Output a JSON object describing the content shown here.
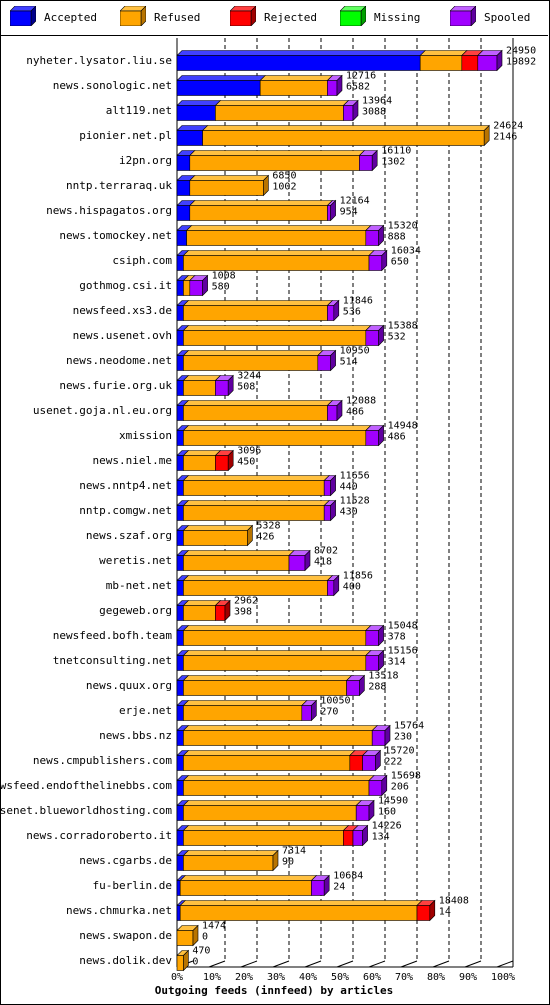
{
  "legend": [
    {
      "name": "Accepted",
      "color": "#0000ff",
      "side": "#00008b",
      "top": "#4040ff"
    },
    {
      "name": "Refused",
      "color": "#ffa500",
      "side": "#b87400",
      "top": "#ffc040"
    },
    {
      "name": "Rejected",
      "color": "#ff0000",
      "side": "#a00000",
      "top": "#ff4040"
    },
    {
      "name": "Missing",
      "color": "#00ff00",
      "side": "#00a000",
      "top": "#60ff60"
    },
    {
      "name": "Spooled",
      "color": "#a000ff",
      "side": "#6000a0",
      "top": "#c060ff"
    }
  ],
  "chart_data": {
    "type": "bar",
    "orientation": "horizontal",
    "stacked": true,
    "xlabel": "Outgoing feeds (innfeed) by articles",
    "xlim": [
      0,
      100
    ],
    "x_ticks": [
      "0%",
      "10%",
      "20%",
      "30%",
      "40%",
      "50%",
      "60%",
      "70%",
      "80%",
      "90%",
      "100%"
    ],
    "grid": true,
    "legend_position": "top",
    "series_order": [
      "Accepted",
      "Refused",
      "Rejected",
      "Missing",
      "Spooled"
    ],
    "rows": [
      {
        "name": "nyheter.lysator.liu.se",
        "total": "24950",
        "accepted": "19892",
        "pct": [
          76,
          13,
          5,
          0,
          6
        ]
      },
      {
        "name": "news.sonologic.net",
        "total": "12716",
        "accepted": "6582",
        "pct": [
          26,
          21,
          0,
          0,
          3
        ]
      },
      {
        "name": "alt119.net",
        "total": "13964",
        "accepted": "3088",
        "pct": [
          12,
          40,
          0,
          0,
          3
        ]
      },
      {
        "name": "pionier.net.pl",
        "total": "24624",
        "accepted": "2146",
        "pct": [
          8,
          88,
          0,
          0,
          0
        ]
      },
      {
        "name": "i2pn.org",
        "total": "16110",
        "accepted": "1302",
        "pct": [
          4,
          53,
          0,
          0,
          4
        ]
      },
      {
        "name": "nntp.terraraq.uk",
        "total": "6850",
        "accepted": "1002",
        "pct": [
          4,
          23,
          0,
          0,
          0
        ]
      },
      {
        "name": "news.hispagatos.org",
        "total": "12164",
        "accepted": "954",
        "pct": [
          4,
          43,
          0,
          0,
          1
        ]
      },
      {
        "name": "news.tomockey.net",
        "total": "15320",
        "accepted": "888",
        "pct": [
          3,
          56,
          0,
          0,
          4
        ]
      },
      {
        "name": "csiph.com",
        "total": "16034",
        "accepted": "650",
        "pct": [
          2,
          58,
          0,
          0,
          4
        ]
      },
      {
        "name": "gothmog.csi.it",
        "total": "1008",
        "accepted": "580",
        "pct": [
          2,
          2,
          0,
          0,
          4
        ]
      },
      {
        "name": "newsfeed.xs3.de",
        "total": "11846",
        "accepted": "536",
        "pct": [
          2,
          45,
          0,
          0,
          2
        ]
      },
      {
        "name": "news.usenet.ovh",
        "total": "15388",
        "accepted": "532",
        "pct": [
          2,
          57,
          0,
          0,
          4
        ]
      },
      {
        "name": "news.neodome.net",
        "total": "10950",
        "accepted": "514",
        "pct": [
          2,
          42,
          0,
          0,
          4
        ]
      },
      {
        "name": "news.furie.org.uk",
        "total": "3244",
        "accepted": "508",
        "pct": [
          2,
          10,
          0,
          0,
          4
        ]
      },
      {
        "name": "usenet.goja.nl.eu.org",
        "total": "12088",
        "accepted": "486",
        "pct": [
          2,
          45,
          0,
          0,
          3
        ]
      },
      {
        "name": "xmission",
        "total": "14948",
        "accepted": "486",
        "pct": [
          2,
          57,
          0,
          0,
          4
        ]
      },
      {
        "name": "news.niel.me",
        "total": "3096",
        "accepted": "450",
        "pct": [
          2,
          10,
          4,
          0,
          0
        ]
      },
      {
        "name": "news.nntp4.net",
        "total": "11656",
        "accepted": "440",
        "pct": [
          2,
          44,
          0,
          0,
          2
        ]
      },
      {
        "name": "nntp.comgw.net",
        "total": "11528",
        "accepted": "430",
        "pct": [
          2,
          44,
          0,
          0,
          2
        ]
      },
      {
        "name": "news.szaf.org",
        "total": "5328",
        "accepted": "426",
        "pct": [
          2,
          20,
          0,
          0,
          0
        ]
      },
      {
        "name": "weretis.net",
        "total": "8702",
        "accepted": "418",
        "pct": [
          2,
          33,
          0,
          0,
          5
        ]
      },
      {
        "name": "mb-net.net",
        "total": "11856",
        "accepted": "400",
        "pct": [
          2,
          45,
          0,
          0,
          2
        ]
      },
      {
        "name": "gegeweb.org",
        "total": "2962",
        "accepted": "398",
        "pct": [
          2,
          10,
          3,
          0,
          0
        ]
      },
      {
        "name": "newsfeed.bofh.team",
        "total": "15048",
        "accepted": "378",
        "pct": [
          2,
          57,
          0,
          0,
          4
        ]
      },
      {
        "name": "tnetconsulting.net",
        "total": "15156",
        "accepted": "314",
        "pct": [
          2,
          57,
          0,
          0,
          4
        ]
      },
      {
        "name": "news.quux.org",
        "total": "13518",
        "accepted": "288",
        "pct": [
          2,
          51,
          0,
          0,
          4
        ]
      },
      {
        "name": "erje.net",
        "total": "10050",
        "accepted": "270",
        "pct": [
          2,
          37,
          0,
          0,
          3
        ]
      },
      {
        "name": "news.bbs.nz",
        "total": "15764",
        "accepted": "230",
        "pct": [
          2,
          59,
          0,
          0,
          4
        ]
      },
      {
        "name": "news.cmpublishers.com",
        "total": "15720",
        "accepted": "222",
        "pct": [
          2,
          52,
          4,
          0,
          4
        ]
      },
      {
        "name": "newsfeed.endofthelinebbs.com",
        "total": "15698",
        "accepted": "206",
        "pct": [
          2,
          58,
          0,
          0,
          4
        ]
      },
      {
        "name": "usenet.blueworldhosting.com",
        "total": "14590",
        "accepted": "160",
        "pct": [
          2,
          54,
          0,
          0,
          4
        ]
      },
      {
        "name": "news.corradoroberto.it",
        "total": "14226",
        "accepted": "134",
        "pct": [
          2,
          50,
          3,
          0,
          3
        ]
      },
      {
        "name": "news.cgarbs.de",
        "total": "7314",
        "accepted": "90",
        "pct": [
          2,
          28,
          0,
          0,
          0
        ]
      },
      {
        "name": "fu-berlin.de",
        "total": "10684",
        "accepted": "24",
        "pct": [
          1,
          41,
          0,
          0,
          4
        ]
      },
      {
        "name": "news.chmurka.net",
        "total": "18408",
        "accepted": "14",
        "pct": [
          1,
          74,
          4,
          0,
          0
        ]
      },
      {
        "name": "news.swapon.de",
        "total": "1474",
        "accepted": "0",
        "pct": [
          0,
          5,
          0,
          0,
          0
        ]
      },
      {
        "name": "news.dolik.dev",
        "total": "470",
        "accepted": "0",
        "pct": [
          0,
          2,
          0,
          0,
          0
        ]
      }
    ]
  }
}
